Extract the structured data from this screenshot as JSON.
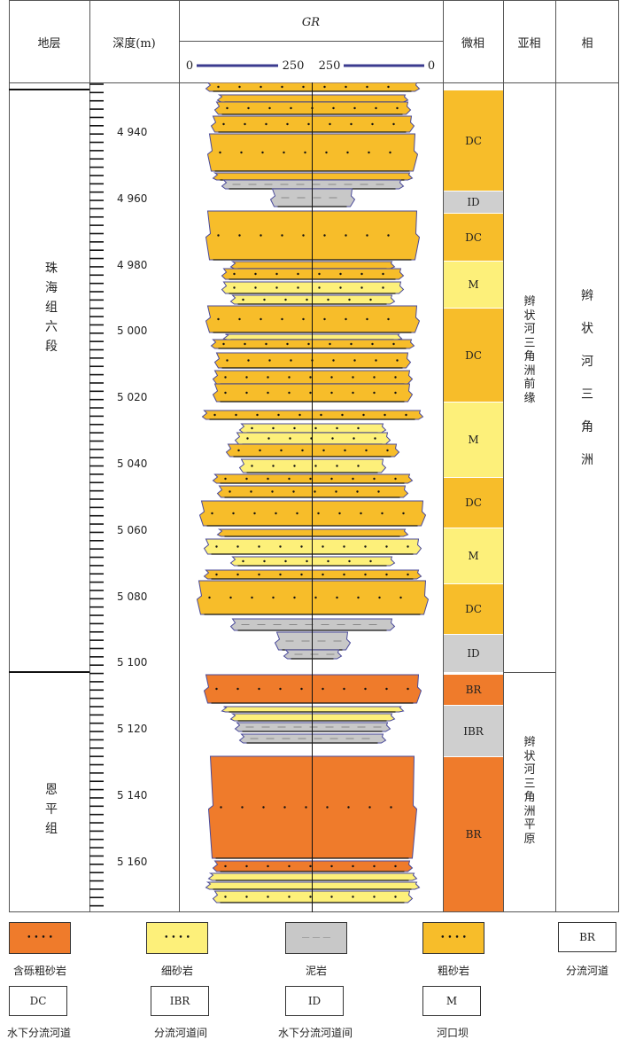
{
  "headers": {
    "strata": "地层",
    "depth": "深度(m)",
    "gr_title": "GR",
    "gr_left_min": "0",
    "gr_left_max": "250",
    "gr_right_max": "250",
    "gr_right_min": "0",
    "microfacies": "微相",
    "subfacies": "亚相",
    "facies": "相"
  },
  "strata": [
    {
      "label": "珠海组六段"
    },
    {
      "label": "恩平组"
    }
  ],
  "depth_labels": [
    "4 940",
    "4 960",
    "4 980",
    "5 000",
    "5 020",
    "5 040",
    "5 060",
    "5 080",
    "5 100",
    "5 120",
    "5 140",
    "5 160"
  ],
  "microfacies": [
    {
      "code": "DC",
      "color": "#f7bd2a"
    },
    {
      "code": "ID",
      "color": "#cfcfcf"
    },
    {
      "code": "DC",
      "color": "#f7bd2a"
    },
    {
      "code": "M",
      "color": "#fdf07a"
    },
    {
      "code": "DC",
      "color": "#f7bd2a"
    },
    {
      "code": "M",
      "color": "#fdf07a"
    },
    {
      "code": "DC",
      "color": "#f7bd2a"
    },
    {
      "code": "M",
      "color": "#fdf07a"
    },
    {
      "code": "DC",
      "color": "#f7bd2a"
    },
    {
      "code": "ID",
      "color": "#cfcfcf"
    },
    {
      "code": "BR",
      "color": "#ef7b2b"
    },
    {
      "code": "IBR",
      "color": "#cfcfcf"
    },
    {
      "code": "BR",
      "color": "#ef7b2b"
    }
  ],
  "subfacies": [
    {
      "label": "辫状河三角洲前缘"
    },
    {
      "label": "辫状河三角洲平原"
    }
  ],
  "facies": {
    "label": "辫状河三角洲"
  },
  "legend": {
    "row1": [
      {
        "label": "含砾粗砂岩",
        "color": "#ef7b2b",
        "pattern": "dots"
      },
      {
        "label": "细砂岩",
        "color": "#fdf07a",
        "pattern": "dots"
      },
      {
        "label": "泥岩",
        "color": "#c8c8c8",
        "pattern": "dashes"
      },
      {
        "label": "粗砂岩",
        "color": "#f7bd2a",
        "pattern": "dots"
      },
      {
        "label": "分流河道",
        "code": "BR"
      }
    ],
    "row2": [
      {
        "label": "水下分流河道",
        "code": "DC"
      },
      {
        "label": "分流河道间",
        "code": "IBR"
      },
      {
        "label": "水下分流河道间",
        "code": "ID"
      },
      {
        "label": "河口坝",
        "code": "M"
      }
    ]
  },
  "colors": {
    "pebbly_coarse_sand": "#ef7b2b",
    "fine_sand": "#fdf07a",
    "mudstone": "#c8c8c8",
    "coarse_sand": "#f7bd2a",
    "gr_scale_line": "#3b3b8f"
  }
}
